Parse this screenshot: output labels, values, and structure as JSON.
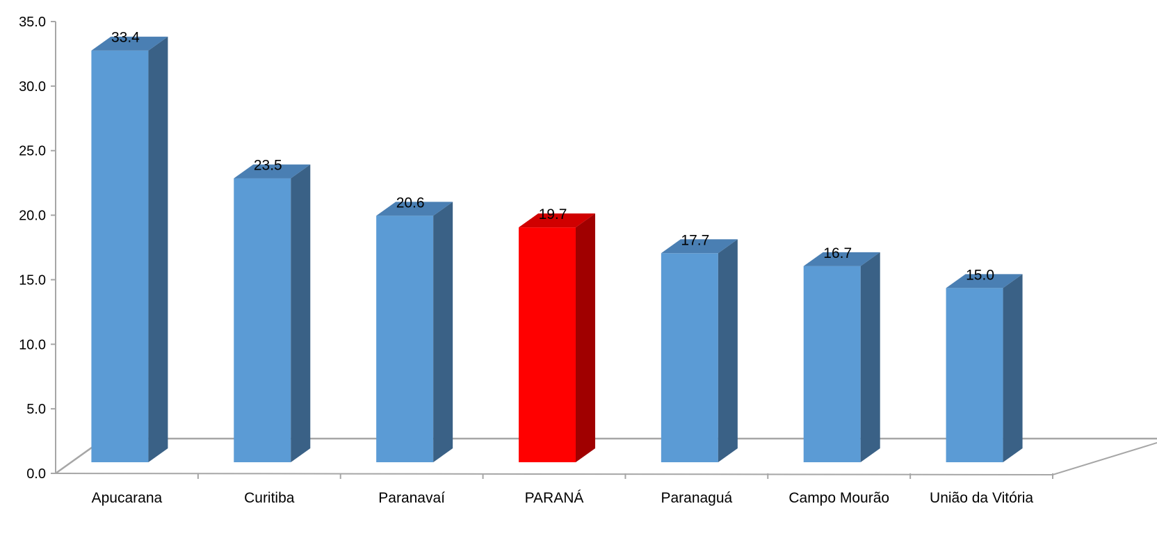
{
  "chart_data": {
    "type": "bar",
    "title": "",
    "xlabel": "",
    "ylabel": "",
    "ylim": [
      0,
      35
    ],
    "y_ticks": [
      "0.0",
      "5.0",
      "10.0",
      "15.0",
      "20.0",
      "25.0",
      "30.0",
      "35.0"
    ],
    "categories": [
      "Apucarana",
      "Curitiba",
      "Paranavaí",
      "PARANÁ",
      "Paranaguá",
      "Campo Mourão",
      "União da Vitória"
    ],
    "values": [
      33.4,
      23.5,
      20.6,
      19.7,
      17.7,
      16.7,
      15.0
    ],
    "value_labels": [
      "33.4",
      "23.5",
      "20.6",
      "19.7",
      "17.7",
      "16.7",
      "15.0"
    ],
    "highlight_index": 3,
    "grid": false,
    "legend": "none",
    "style": "3d-columns",
    "colors": {
      "bar_front": "#5b9bd5",
      "bar_side": "#3a6186",
      "bar_top": "#4a7fb3",
      "highlight_front": "#ff0000",
      "highlight_side": "#a00000",
      "highlight_top": "#d00000",
      "axis": "#a6a6a6"
    }
  }
}
